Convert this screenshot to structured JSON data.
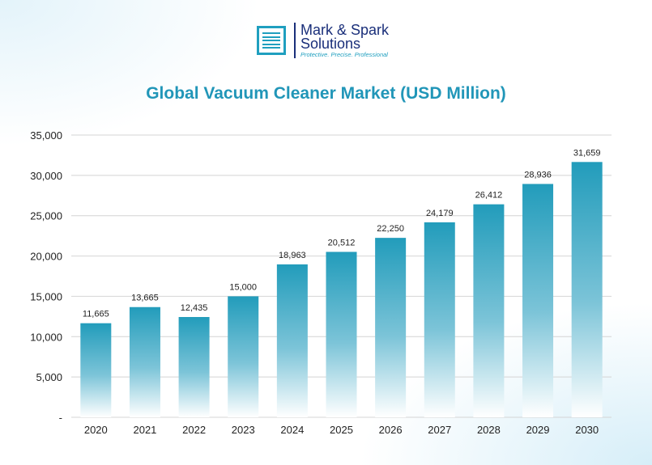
{
  "logo": {
    "name_line1": "Mark & Spark",
    "name_line2": "Solutions",
    "tagline": "Protective. Precise. Professional"
  },
  "chart_data": {
    "type": "bar",
    "title": "Global Vacuum Cleaner Market (USD Million)",
    "categories": [
      "2020",
      "2021",
      "2022",
      "2023",
      "2024",
      "2025",
      "2026",
      "2027",
      "2028",
      "2029",
      "2030"
    ],
    "values": [
      11665,
      13665,
      12435,
      15000,
      18963,
      20512,
      22250,
      24179,
      26412,
      28936,
      31659
    ],
    "data_labels": [
      "11,665",
      "13,665",
      "12,435",
      "15,000",
      "18,963",
      "20,512",
      "22,250",
      "24,179",
      "26,412",
      "28,936",
      "31,659"
    ],
    "ylim": [
      0,
      35000
    ],
    "yticks": [
      0,
      5000,
      10000,
      15000,
      20000,
      25000,
      30000,
      35000
    ],
    "ytick_labels": [
      "-",
      "5,000",
      "10,000",
      "15,000",
      "20,000",
      "25,000",
      "30,000",
      "35,000"
    ],
    "xlabel": "",
    "ylabel": "",
    "grid": true,
    "bar_color": "#229cbb"
  }
}
